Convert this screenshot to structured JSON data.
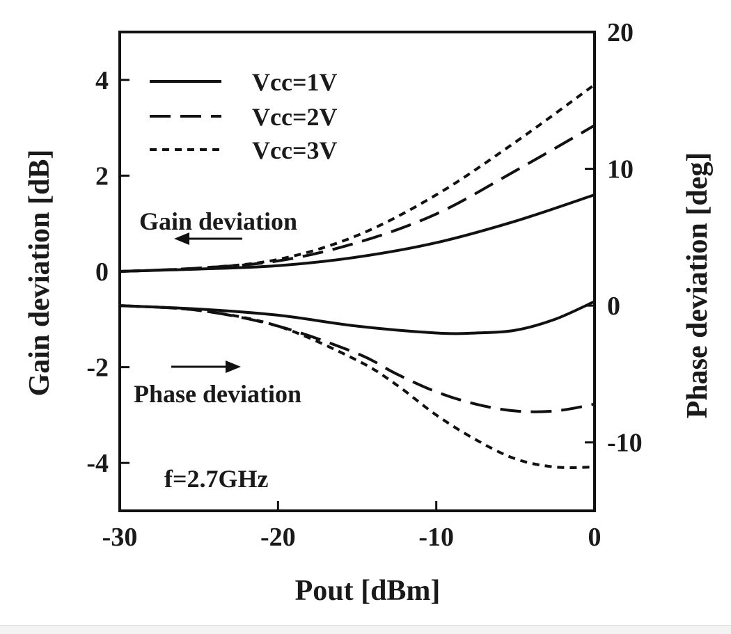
{
  "chart_data": {
    "type": "line",
    "xlabel": "Pout [dBm]",
    "ylabel_left": "Gain deviation [dB]",
    "ylabel_right": "Phase deviation [deg]",
    "xlim": [
      -30,
      0
    ],
    "ylim_left": [
      -5,
      5
    ],
    "ylim_right": [
      -15,
      20
    ],
    "x_ticks": [
      -30,
      -20,
      -10,
      0
    ],
    "x_tick_labels": [
      "-30",
      "-20",
      "-10",
      "0"
    ],
    "y_left_ticks": [
      -4,
      -2,
      0,
      2,
      4
    ],
    "y_left_tick_labels": [
      "-4",
      "-2",
      "0",
      "2",
      "4"
    ],
    "y_right_ticks": [
      -10,
      0,
      10,
      20
    ],
    "y_right_tick_labels": [
      "-10",
      "0",
      "10",
      "20"
    ],
    "grid": false,
    "legend_position": "top-left",
    "legend": [
      {
        "label": "Vcc=1V",
        "style": "solid"
      },
      {
        "label": "Vcc=2V",
        "style": "long-dash"
      },
      {
        "label": "Vcc=3V",
        "style": "short-dash"
      }
    ],
    "annotations": {
      "gain": "Gain deviation",
      "phase": "Phase deviation",
      "freq": "f=2.7GHz"
    },
    "series": [
      {
        "name": "Vcc=1V",
        "quantity": "Gain deviation",
        "axis": "left",
        "style": "solid",
        "x": [
          -30,
          -25,
          -20,
          -15,
          -10,
          -5,
          0
        ],
        "y": [
          0.0,
          0.05,
          0.12,
          0.3,
          0.6,
          1.05,
          1.6
        ]
      },
      {
        "name": "Vcc=2V",
        "quantity": "Gain deviation",
        "axis": "left",
        "style": "long-dash",
        "x": [
          -30,
          -25,
          -20,
          -15,
          -10,
          -5,
          0
        ],
        "y": [
          0.0,
          0.07,
          0.22,
          0.6,
          1.2,
          2.1,
          3.05
        ]
      },
      {
        "name": "Vcc=3V",
        "quantity": "Gain deviation",
        "axis": "left",
        "style": "short-dash",
        "x": [
          -30,
          -25,
          -20,
          -15,
          -10,
          -5,
          0
        ],
        "y": [
          0.0,
          0.07,
          0.25,
          0.75,
          1.6,
          2.7,
          3.9
        ]
      },
      {
        "name": "Vcc=1V",
        "quantity": "Phase deviation",
        "axis": "right",
        "style": "solid",
        "x": [
          -30,
          -25,
          -20,
          -15,
          -10,
          -7.5,
          -5,
          -2.5,
          0
        ],
        "y": [
          0.0,
          -0.25,
          -0.7,
          -1.5,
          -2.0,
          -2.0,
          -1.8,
          -1.0,
          0.3
        ]
      },
      {
        "name": "Vcc=2V",
        "quantity": "Phase deviation",
        "axis": "right",
        "style": "long-dash",
        "x": [
          -30,
          -25,
          -20,
          -15,
          -12.5,
          -10,
          -7.5,
          -5,
          -2.5,
          0
        ],
        "y": [
          0.0,
          -0.35,
          -1.5,
          -3.5,
          -5.0,
          -6.3,
          -7.2,
          -7.7,
          -7.7,
          -7.2
        ]
      },
      {
        "name": "Vcc=3V",
        "quantity": "Phase deviation",
        "axis": "right",
        "style": "short-dash",
        "x": [
          -30,
          -25,
          -20,
          -15,
          -12.5,
          -10,
          -7.5,
          -5,
          -2.5,
          0
        ],
        "y": [
          0.0,
          -0.35,
          -1.5,
          -4.0,
          -5.8,
          -8.0,
          -9.8,
          -11.2,
          -11.8,
          -11.8
        ]
      }
    ]
  }
}
